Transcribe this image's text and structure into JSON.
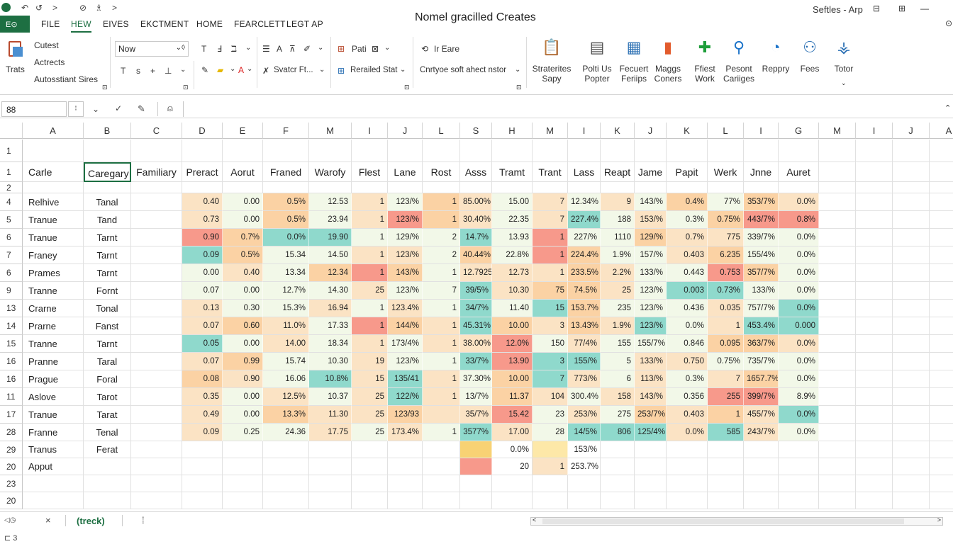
{
  "app": {
    "title": "Nomel gracilled Creates",
    "user": "Seftles - Arp",
    "file_badge": "E⊙"
  },
  "quick_access": [
    "↶",
    "↺",
    ">",
    "⊘",
    "♗",
    ">"
  ],
  "tabs": [
    "FILE",
    "HEW",
    "EIVES",
    "EKCTMENT",
    "HOME",
    "FEARCLETT",
    "LEGT AP"
  ],
  "active_tab": 1,
  "ribbon": {
    "clipboard": {
      "label": "Trats",
      "items": [
        "Cutest",
        "Actrects",
        "Autosstiant Sires"
      ]
    },
    "font": {
      "name": "Now",
      "row1": [
        "T",
        "Ⅎ",
        "ℶ"
      ],
      "row2": [
        "T",
        "s",
        "+",
        "⊥"
      ]
    },
    "align": {
      "items": [
        "A",
        "⊼"
      ],
      "row2": "Svatcr Ft..."
    },
    "number": {
      "top": "Pati",
      "bottom": "Rerailed Stat"
    },
    "styles": {
      "top": "Ir Eare",
      "bottom": "Cnrtyoe soft ahect nstor"
    },
    "big_buttons": [
      {
        "label": "Straterites\nSapy",
        "icon": "clipboard-chart-icon",
        "color": "#2a6fb3"
      },
      {
        "label": "Polti Us\nPopter",
        "icon": "document-icon",
        "color": "#444"
      },
      {
        "label": "Fecuert\nFeriips",
        "icon": "table-grid-icon",
        "color": "#2a6fb3"
      },
      {
        "label": "Maggs\nConers",
        "icon": "bar-chart-icon",
        "color": "#e25b2c"
      },
      {
        "label": "Ffiest\nWork",
        "icon": "plus-icon",
        "color": "#1e9e3a"
      },
      {
        "label": "Pesont\nCariiges",
        "icon": "magnifier-icon",
        "color": "#1b73c9"
      },
      {
        "label": "Reppry",
        "icon": "gauge-icon",
        "color": "#1b73c9"
      },
      {
        "label": "Fees",
        "icon": "people-icon",
        "color": "#2a6fb3"
      },
      {
        "label": "Totor",
        "icon": "network-icon",
        "color": "#2a6fb3"
      }
    ]
  },
  "formula_bar": {
    "name_box": "88",
    "input": ""
  },
  "columns": [
    "A",
    "B",
    "C",
    "D",
    "E",
    "F",
    "M",
    "I",
    "J",
    "L",
    "S",
    "H",
    "M",
    "I",
    "K",
    "J",
    "K",
    "L",
    "I",
    "G",
    "M",
    "I",
    "J",
    "A"
  ],
  "rows": [
    {
      "num": "1",
      "cells": []
    },
    {
      "num": "1",
      "cells": [
        "Carle",
        "Caregary",
        "Familiary",
        "Preract",
        "Aorut",
        "Franed",
        "Warofy",
        "Flest",
        "Lane",
        "Rost",
        "Asss",
        "Tramt",
        "Trant",
        "Lass",
        "Reapt",
        "Jame",
        "Papit",
        "Werk",
        "Jnne",
        "Auret"
      ]
    },
    {
      "num": "2",
      "cells": []
    },
    {
      "num": "4",
      "cells": [
        "Relhive",
        "Tanal",
        "",
        "0.40",
        "0.00",
        "0.5%",
        "12.53",
        "1",
        "123/%",
        "1",
        "85.00%",
        "15.00",
        "7",
        "12.34%",
        "9",
        "143/%",
        "0.4%",
        "77%",
        "353/7%",
        "0.0%"
      ]
    },
    {
      "num": "5",
      "cells": [
        "Tranue",
        "Tand",
        "",
        "0.73",
        "0.00",
        "0.5%",
        "23.94",
        "1",
        "123/%",
        "1",
        "30.40%",
        "22.35",
        "7",
        "227.4%",
        "188",
        "153/%",
        "0.3%",
        "0.75%",
        "443/7%",
        "0.8%"
      ]
    },
    {
      "num": "6",
      "cells": [
        "Tranue",
        "Tarnt",
        "",
        "0.90",
        "0.7%",
        "0.0%",
        "19.90",
        "1",
        "129/%",
        "2",
        "14.7%",
        "13.93",
        "1",
        "227/%",
        "1110",
        "129/%",
        "0.7%",
        "775",
        "339/7%",
        "0.0%"
      ]
    },
    {
      "num": "7",
      "cells": [
        "Franey",
        "Tarnt",
        "",
        "0.09",
        "0.5%",
        "15.34",
        "14.50",
        "1",
        "123/%",
        "2",
        "40.44%",
        "22.8%",
        "1",
        "224.4%",
        "1.9%",
        "157/%",
        "0.403",
        "6.235",
        "155/4%",
        "0.0%"
      ]
    },
    {
      "num": "6",
      "cells": [
        "Prames",
        "Tarnt",
        "",
        "0.00",
        "0.40",
        "13.34",
        "12.34",
        "1",
        "143/%",
        "1",
        "12.7925",
        "12.73",
        "1",
        "233.5%",
        "2.2%",
        "133/%",
        "0.443",
        "0.753",
        "357/7%",
        "0.0%"
      ]
    },
    {
      "num": "9",
      "cells": [
        "Tranne",
        "Fornt",
        "",
        "0.07",
        "0.00",
        "12.7%",
        "14.30",
        "25",
        "123/%",
        "7",
        "39/5%",
        "10.30",
        "75",
        "74.5%",
        "25",
        "123/%",
        "0.003",
        "0.73%",
        "133/%",
        "0.0%"
      ]
    },
    {
      "num": "13",
      "cells": [
        "Crarne",
        "Tonal",
        "",
        "0.13",
        "0.30",
        "15.3%",
        "16.94",
        "1",
        "123.4%",
        "1",
        "34/7%",
        "11.40",
        "15",
        "153.7%",
        "235",
        "123/%",
        "0.436",
        "0.035",
        "757/7%",
        "0.0%"
      ]
    },
    {
      "num": "14",
      "cells": [
        "Prarne",
        "Fanst",
        "",
        "0.07",
        "0.60",
        "11.0%",
        "17.33",
        "1",
        "144/%",
        "1",
        "45.31%",
        "10.00",
        "3",
        "13.43%",
        "1.9%",
        "123/%",
        "0.0%",
        "1",
        "453.4%",
        "0.000"
      ]
    },
    {
      "num": "15",
      "cells": [
        "Tranne",
        "Tarnt",
        "",
        "0.05",
        "0.00",
        "14.00",
        "18.34",
        "1",
        "173/4%",
        "1",
        "38.00%",
        "12.0%",
        "150",
        "77/4%",
        "155",
        "155/7%",
        "0.846",
        "0.095",
        "363/7%",
        "0.0%"
      ]
    },
    {
      "num": "16",
      "cells": [
        "Pranne",
        "Taral",
        "",
        "0.07",
        "0.99",
        "15.74",
        "10.30",
        "19",
        "123/%",
        "1",
        "33/7%",
        "13.90",
        "3",
        "155/%",
        "5",
        "133/%",
        "0.750",
        "0.75%",
        "735/7%",
        "0.0%"
      ]
    },
    {
      "num": "16",
      "cells": [
        "Prague",
        "Foral",
        "",
        "0.08",
        "0.90",
        "16.06",
        "10.8%",
        "15",
        "135/41",
        "1",
        "37.30%",
        "10.00",
        "7",
        "773/%",
        "6",
        "113/%",
        "0.3%",
        "7",
        "1657.7%",
        "0.0%"
      ]
    },
    {
      "num": "11",
      "cells": [
        "Aslove",
        "Tarot",
        "",
        "0.35",
        "0.00",
        "12.5%",
        "10.37",
        "25",
        "122/%",
        "1",
        "13/7%",
        "11.37",
        "104",
        "300.4%",
        "158",
        "143/%",
        "0.356",
        "255",
        "399/7%",
        "8.9%"
      ]
    },
    {
      "num": "17",
      "cells": [
        "Tranue",
        "Tarat",
        "",
        "0.49",
        "0.00",
        "13.3%",
        "11.30",
        "25",
        "123/93",
        "",
        "35/7%",
        "15.42",
        "23",
        "253/%",
        "275",
        "253/7%",
        "0.403",
        "1",
        "455/7%",
        "0.0%"
      ]
    },
    {
      "num": "28",
      "cells": [
        "Franne",
        "Tenal",
        "",
        "0.09",
        "0.25",
        "24.36",
        "17.75",
        "25",
        "173.4%",
        "1",
        "3577%",
        "17.00",
        "28",
        "14/5%",
        "806",
        "125/4%",
        "0.0%",
        "585",
        "243/7%",
        "0.0%"
      ]
    },
    {
      "num": "29",
      "cells": [
        "Tranus",
        "Ferat",
        "",
        "",
        "",
        "",
        "",
        "",
        "",
        "",
        "",
        "0.0%",
        "",
        "153/%"
      ]
    },
    {
      "num": "20",
      "cells": [
        "Apput",
        "",
        "",
        "",
        "",
        "",
        "",
        "",
        "",
        "",
        "",
        "20",
        "1",
        "253.7%"
      ]
    },
    {
      "num": "23",
      "cells": []
    },
    {
      "num": "20",
      "cells": []
    }
  ],
  "colors": {
    "accent": "#1d6f42",
    "green": "#f2f8e8",
    "lightgreen": "#e0f0d6",
    "orange": "#fbd2a4",
    "peach": "#fbe3c4",
    "teal": "#8fd9cc",
    "red": "#f7998b",
    "yellow": "#fde8a8",
    "gold": "#f8d274"
  },
  "cell_colors": [
    [
      "peach",
      "green",
      "orange",
      "green",
      "peach",
      "green",
      "orange",
      "peach",
      "green",
      "peach",
      "green",
      "peach",
      "green",
      "orange",
      "green",
      "orange",
      "peach"
    ],
    [
      "peach",
      "green",
      "orange",
      "green",
      "peach",
      "red",
      "orange",
      "peach",
      "green",
      "peach",
      "teal",
      "green",
      "peach",
      "green",
      "orange",
      "red",
      "red"
    ],
    [
      "red",
      "orange",
      "teal",
      "teal",
      "green",
      "green",
      "green",
      "teal",
      "green",
      "red",
      "green",
      "green",
      "orange",
      "peach",
      "peach",
      "green",
      "green"
    ],
    [
      "teal",
      "orange",
      "green",
      "green",
      "peach",
      "peach",
      "green",
      "orange",
      "green",
      "red",
      "orange",
      "green",
      "green",
      "peach",
      "orange",
      "green",
      "green"
    ],
    [
      "green",
      "peach",
      "green",
      "orange",
      "red",
      "orange",
      "green",
      "peach",
      "peach",
      "peach",
      "orange",
      "peach",
      "green",
      "green",
      "red",
      "orange",
      "green"
    ],
    [
      "green",
      "green",
      "green",
      "green",
      "peach",
      "green",
      "green",
      "teal",
      "peach",
      "orange",
      "orange",
      "peach",
      "green",
      "teal",
      "teal",
      "green",
      "green"
    ],
    [
      "peach",
      "green",
      "green",
      "peach",
      "green",
      "peach",
      "green",
      "teal",
      "green",
      "teal",
      "orange",
      "green",
      "green",
      "green",
      "peach",
      "green",
      "teal"
    ],
    [
      "peach",
      "orange",
      "peach",
      "green",
      "red",
      "orange",
      "peach",
      "teal",
      "orange",
      "peach",
      "orange",
      "peach",
      "teal",
      "green",
      "peach",
      "teal",
      "teal"
    ],
    [
      "teal",
      "green",
      "peach",
      "green",
      "peach",
      "green",
      "peach",
      "peach",
      "red",
      "green",
      "peach",
      "green",
      "green",
      "green",
      "orange",
      "orange",
      "peach"
    ],
    [
      "peach",
      "orange",
      "green",
      "green",
      "peach",
      "green",
      "green",
      "teal",
      "red",
      "teal",
      "teal",
      "green",
      "peach",
      "peach",
      "green",
      "green",
      "green"
    ],
    [
      "orange",
      "peach",
      "green",
      "teal",
      "peach",
      "teal",
      "peach",
      "green",
      "orange",
      "teal",
      "peach",
      "green",
      "peach",
      "green",
      "peach",
      "orange",
      "green"
    ],
    [
      "peach",
      "green",
      "peach",
      "green",
      "peach",
      "teal",
      "peach",
      "green",
      "orange",
      "peach",
      "green",
      "peach",
      "peach",
      "green",
      "red",
      "red",
      "green"
    ],
    [
      "peach",
      "green",
      "orange",
      "peach",
      "peach",
      "orange",
      "peach",
      "peach",
      "red",
      "green",
      "peach",
      "green",
      "orange",
      "peach",
      "orange",
      "peach",
      "teal"
    ],
    [
      "peach",
      "green",
      "green",
      "peach",
      "green",
      "peach",
      "green",
      "teal",
      "peach",
      "green",
      "teal",
      "teal",
      "teal",
      "peach",
      "teal",
      "peach",
      "green"
    ],
    [
      null,
      null,
      null,
      null,
      null,
      null,
      null,
      "gold",
      null,
      "yellow",
      null,
      null,
      null,
      null,
      null,
      null,
      null
    ],
    [
      null,
      null,
      null,
      null,
      null,
      null,
      null,
      "red",
      null,
      "peach",
      null,
      null,
      null,
      null,
      null,
      null,
      null
    ]
  ],
  "sheet_tabs": {
    "nav": "◁◷",
    "close": "×",
    "active": "(treck)",
    "divider": "⁞"
  },
  "status": {
    "left": "⊏ 3"
  }
}
